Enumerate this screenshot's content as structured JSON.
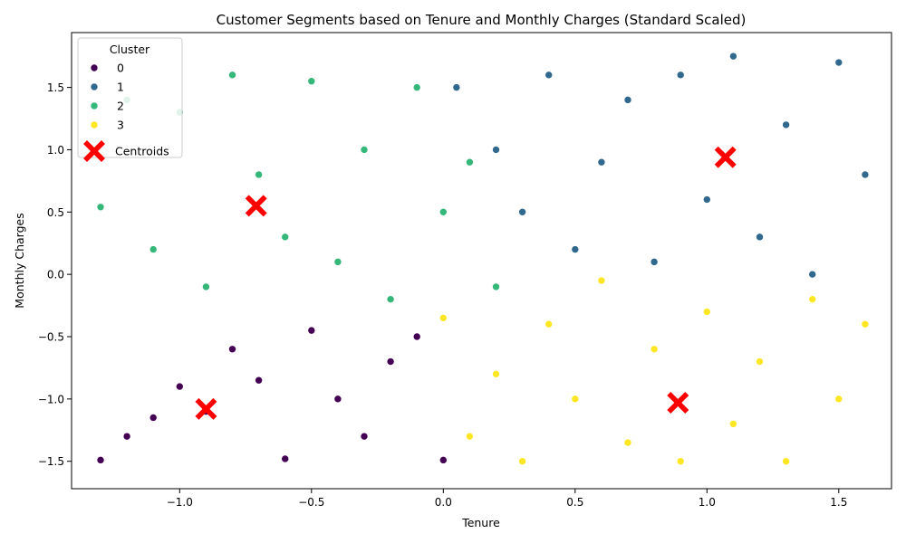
{
  "chart_data": {
    "type": "scatter",
    "title": "Customer Segments based on Tenure and Monthly Charges (Standard Scaled)",
    "xlabel": "Tenure",
    "ylabel": "Monthly Charges",
    "xlim": [
      -1.41,
      1.7
    ],
    "ylim": [
      -1.72,
      1.94
    ],
    "xticks": [
      -1.0,
      -0.5,
      0.0,
      0.5,
      1.0,
      1.5
    ],
    "xtick_labels": [
      "−1.0",
      "−0.5",
      "0.0",
      "0.5",
      "1.0",
      "1.5"
    ],
    "yticks": [
      -1.5,
      -1.0,
      -0.5,
      0.0,
      0.5,
      1.0,
      1.5
    ],
    "ytick_labels": [
      "−1.5",
      "−1.0",
      "−0.5",
      "0.0",
      "0.5",
      "1.0",
      "1.5"
    ],
    "grid": false,
    "legend": {
      "title": "Cluster",
      "position": "top-left",
      "entries": [
        {
          "label": "0",
          "color": "#440154"
        },
        {
          "label": "1",
          "color": "#31688e"
        },
        {
          "label": "2",
          "color": "#35b779"
        },
        {
          "label": "3",
          "color": "#fde725"
        },
        {
          "label": "Centroids",
          "color": "#ff0000",
          "marker": "X"
        }
      ]
    },
    "series": [
      {
        "name": "0",
        "color": "#440154",
        "x_range": [
          -1.3,
          0.0
        ],
        "y_range": [
          -1.55,
          -0.3
        ],
        "approx_points": [
          [
            -1.3,
            -1.49
          ],
          [
            -1.2,
            -1.3
          ],
          [
            -1.1,
            -1.15
          ],
          [
            -1.0,
            -0.9
          ],
          [
            -0.9,
            -1.1
          ],
          [
            -0.8,
            -0.6
          ],
          [
            -0.7,
            -0.85
          ],
          [
            -0.6,
            -1.48
          ],
          [
            -0.5,
            -0.45
          ],
          [
            -0.4,
            -1.0
          ],
          [
            -0.3,
            -1.3
          ],
          [
            -0.2,
            -0.7
          ],
          [
            -0.1,
            -0.5
          ],
          [
            0.0,
            -1.49
          ]
        ]
      },
      {
        "name": "1",
        "color": "#31688e",
        "x_range": [
          0.0,
          1.62
        ],
        "y_range": [
          -0.08,
          1.79
        ],
        "approx_points": [
          [
            0.05,
            1.5
          ],
          [
            0.2,
            1.0
          ],
          [
            0.3,
            0.5
          ],
          [
            0.4,
            1.6
          ],
          [
            0.5,
            0.2
          ],
          [
            0.6,
            0.9
          ],
          [
            0.7,
            1.4
          ],
          [
            0.8,
            0.1
          ],
          [
            0.9,
            1.6
          ],
          [
            1.0,
            0.6
          ],
          [
            1.1,
            1.75
          ],
          [
            1.2,
            0.3
          ],
          [
            1.3,
            1.2
          ],
          [
            1.4,
            0.0
          ],
          [
            1.5,
            1.7
          ],
          [
            1.6,
            0.8
          ]
        ]
      },
      {
        "name": "2",
        "color": "#35b779",
        "x_range": [
          -1.3,
          0.2
        ],
        "y_range": [
          -0.3,
          1.6
        ],
        "approx_points": [
          [
            -1.3,
            0.54
          ],
          [
            -1.2,
            1.4
          ],
          [
            -1.1,
            0.2
          ],
          [
            -1.0,
            1.3
          ],
          [
            -0.9,
            -0.1
          ],
          [
            -0.8,
            1.6
          ],
          [
            -0.7,
            0.8
          ],
          [
            -0.6,
            0.3
          ],
          [
            -0.5,
            1.55
          ],
          [
            -0.4,
            0.1
          ],
          [
            -0.3,
            1.0
          ],
          [
            -0.2,
            -0.2
          ],
          [
            -0.1,
            1.5
          ],
          [
            0.0,
            0.5
          ],
          [
            0.1,
            0.9
          ],
          [
            0.2,
            -0.1
          ]
        ]
      },
      {
        "name": "3",
        "color": "#fde725",
        "x_range": [
          0.0,
          1.62
        ],
        "y_range": [
          -1.55,
          0.0
        ],
        "approx_points": [
          [
            0.0,
            -0.35
          ],
          [
            0.1,
            -1.3
          ],
          [
            0.2,
            -0.8
          ],
          [
            0.3,
            -1.5
          ],
          [
            0.4,
            -0.4
          ],
          [
            0.5,
            -1.0
          ],
          [
            0.6,
            -0.05
          ],
          [
            0.7,
            -1.35
          ],
          [
            0.8,
            -0.6
          ],
          [
            0.9,
            -1.5
          ],
          [
            1.0,
            -0.3
          ],
          [
            1.1,
            -1.2
          ],
          [
            1.2,
            -0.7
          ],
          [
            1.3,
            -1.5
          ],
          [
            1.4,
            -0.2
          ],
          [
            1.5,
            -1.0
          ],
          [
            1.6,
            -0.4
          ]
        ]
      }
    ],
    "centroids": [
      {
        "x": -0.9,
        "y": -1.08
      },
      {
        "x": 1.07,
        "y": 0.94
      },
      {
        "x": -0.71,
        "y": 0.55
      },
      {
        "x": 0.89,
        "y": -1.03
      }
    ]
  }
}
